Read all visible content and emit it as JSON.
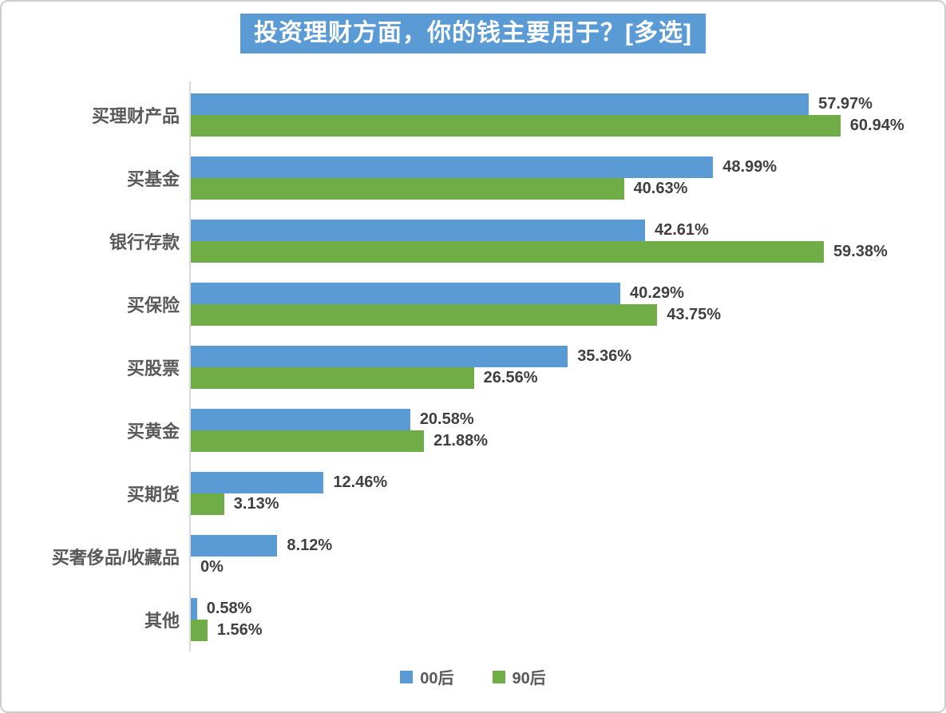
{
  "title": "投资理财方面，你的钱主要用于？[多选]",
  "colors": {
    "title_bg": "#5B9BD5",
    "title_text": "#FFFFFF",
    "series_00hou": "#5B9BD5",
    "series_90hou": "#70AD47",
    "value_label_text": "#404040",
    "category_label_text": "#595959",
    "legend_text": "#595959",
    "axis_line": "#D9D9D9",
    "frame_border": "#CDCDCD",
    "background": "#FFFFFF"
  },
  "legend": {
    "position": "bottom-center",
    "items": [
      {
        "label": "00后",
        "color": "#5B9BD5"
      },
      {
        "label": "90后",
        "color": "#70AD47"
      }
    ]
  },
  "chart_data": {
    "type": "bar",
    "orientation": "horizontal",
    "title": "投资理财方面，你的钱主要用于？[多选]",
    "categories": [
      "买理财产品",
      "买基金",
      "银行存款",
      "买保险",
      "买股票",
      "买黄金",
      "买期货",
      "买奢侈品/收藏品",
      "其他"
    ],
    "series": [
      {
        "name": "00后",
        "color": "#5B9BD5",
        "values": [
          57.97,
          48.99,
          42.61,
          40.29,
          35.36,
          20.58,
          12.46,
          8.12,
          0.58
        ],
        "labels": [
          "57.97%",
          "48.99%",
          "42.61%",
          "40.29%",
          "35.36%",
          "20.58%",
          "12.46%",
          "8.12%",
          "0.58%"
        ]
      },
      {
        "name": "90后",
        "color": "#70AD47",
        "values": [
          60.94,
          40.63,
          59.38,
          43.75,
          26.56,
          21.88,
          3.13,
          0,
          1.56
        ],
        "labels": [
          "60.94%",
          "40.63%",
          "59.38%",
          "43.75%",
          "26.56%",
          "21.88%",
          "3.13%",
          "0%",
          "1.56%"
        ]
      }
    ],
    "xlabel": "",
    "ylabel": "",
    "xlim": [
      0,
      65
    ],
    "grid": false,
    "data_labels": true,
    "legend_position": "bottom"
  }
}
